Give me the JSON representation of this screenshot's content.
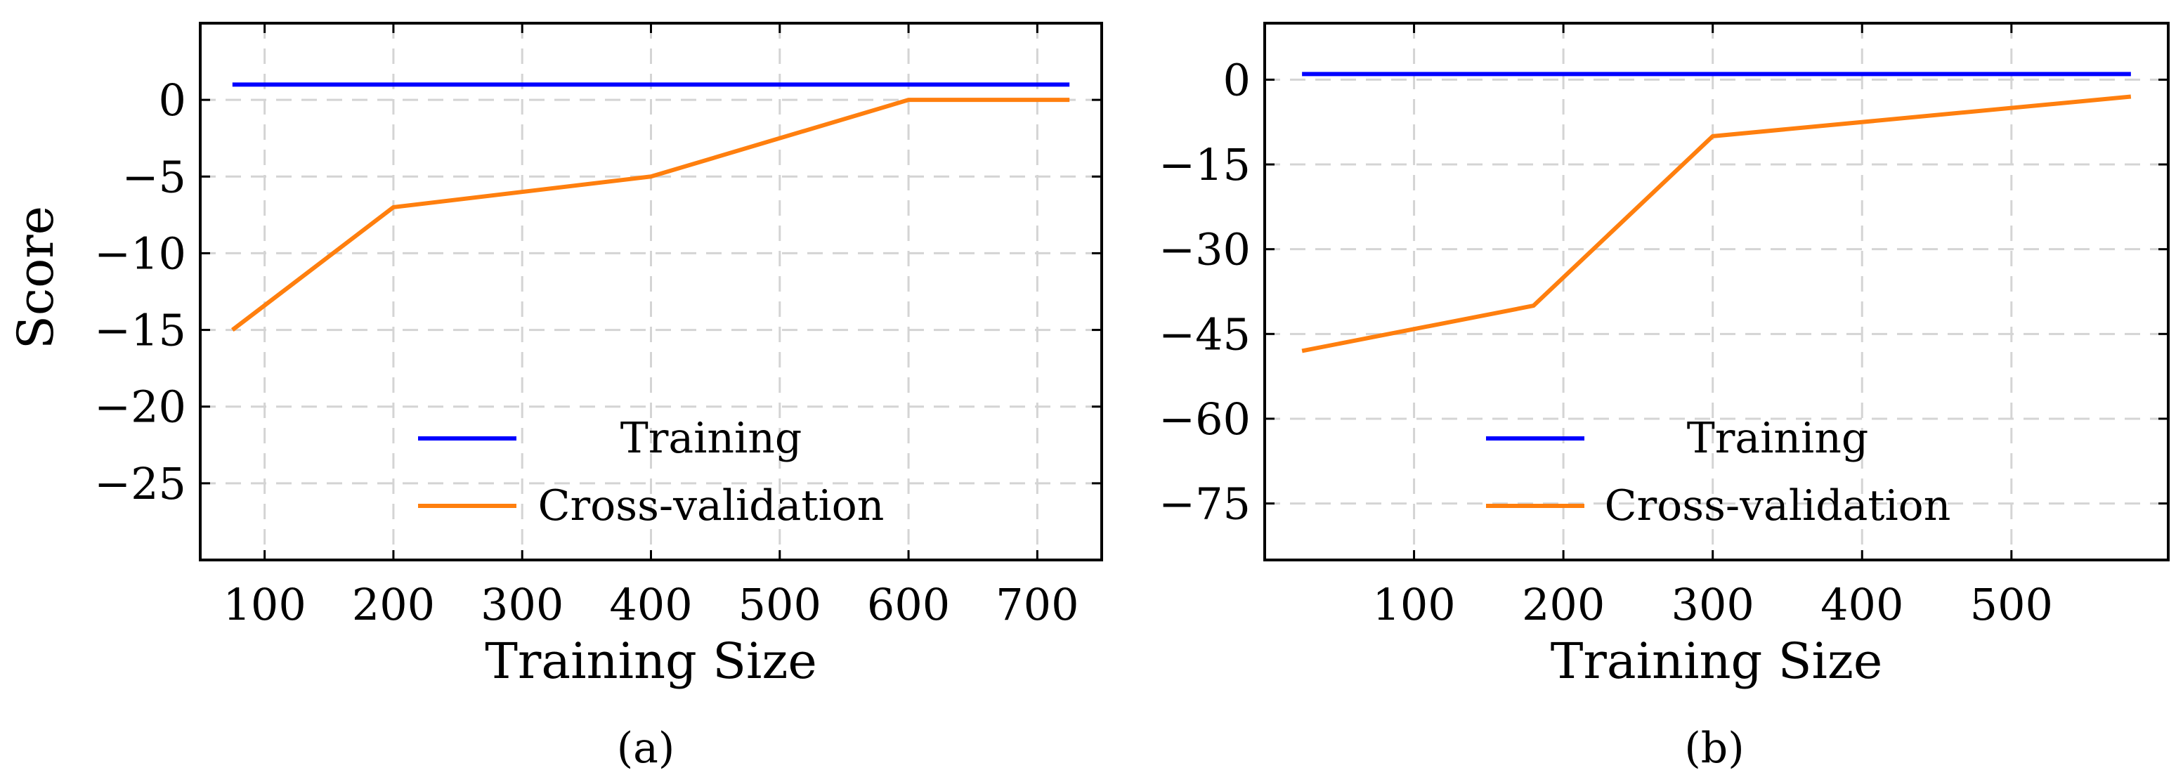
{
  "chart_data": [
    {
      "type": "line",
      "panel_label": "(a)",
      "xlabel": "Training Size",
      "ylabel": "Score",
      "xlim": [
        50,
        750
      ],
      "ylim": [
        -30,
        5
      ],
      "xticks": [
        100,
        200,
        300,
        400,
        500,
        600,
        700
      ],
      "yticks": [
        0,
        -5,
        -10,
        -15,
        -20,
        -25
      ],
      "grid": true,
      "legend_position": "lower-center",
      "series": [
        {
          "name": "Training",
          "color": "#0000ff",
          "x": [
            75,
            725
          ],
          "values": [
            1,
            1
          ]
        },
        {
          "name": "Cross-validation",
          "color": "#ff7f0e",
          "x": [
            75,
            200,
            400,
            600,
            725
          ],
          "values": [
            -15,
            -7,
            -5,
            0,
            0
          ]
        }
      ]
    },
    {
      "type": "line",
      "panel_label": "(b)",
      "xlabel": "Training Size",
      "ylabel": "",
      "xlim": [
        0,
        605
      ],
      "ylim": [
        -85,
        10
      ],
      "xticks": [
        100,
        200,
        300,
        400,
        500
      ],
      "yticks": [
        0,
        -15,
        -30,
        -45,
        -60,
        -75
      ],
      "grid": true,
      "legend_position": "lower-center",
      "series": [
        {
          "name": "Training",
          "color": "#0000ff",
          "x": [
            25,
            580
          ],
          "values": [
            1,
            1
          ]
        },
        {
          "name": "Cross-validation",
          "color": "#ff7f0e",
          "x": [
            25,
            180,
            300,
            580
          ],
          "values": [
            -48,
            -40,
            -10,
            -3
          ]
        }
      ]
    }
  ]
}
